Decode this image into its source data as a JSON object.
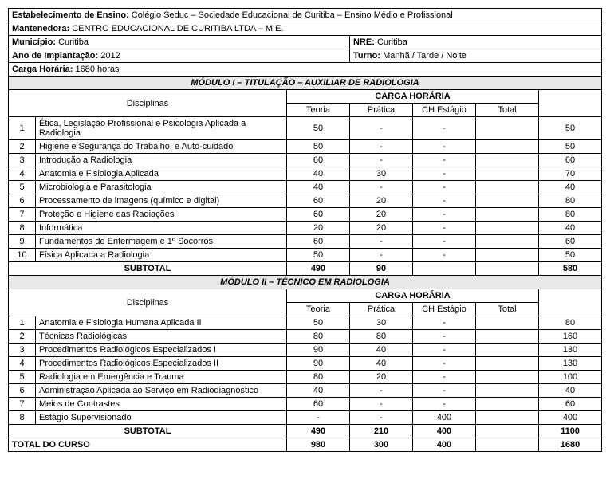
{
  "header": {
    "estabelecimento_label": "Estabelecimento de Ensino:",
    "estabelecimento_value": "Colégio Seduc – Sociedade Educacional de Curitiba – Ensino Médio e Profissional",
    "mantenedora_label": "Mantenedora:",
    "mantenedora_value": "CENTRO EDUCACIONAL DE CURITIBA LTDA – M.E.",
    "municipio_label": "Município:",
    "municipio_value": "Curitiba",
    "nre_label": "NRE:",
    "nre_value": "Curitiba",
    "ano_label": "Ano de Implantação:",
    "ano_value": "2012",
    "turno_label": "Turno:",
    "turno_value": "Manhã / Tarde / Noite",
    "carga_label": "Carga Horária:",
    "carga_value": "1680 horas"
  },
  "module1": {
    "title": "MÓDULO I – TITULAÇÃO – AUXILIAR DE RADIOLOGIA",
    "disciplinas_label": "Disciplinas",
    "carga_label": "CARGA HORÁRIA",
    "teoria_label": "Teoria",
    "pratica_label": "Prática",
    "estagio_label": "CH Estágio",
    "total_label": "Total",
    "rows": [
      {
        "n": "1",
        "d": "Ética, Legislação Profissional e Psicologia Aplicada a Radiologia",
        "t": "50",
        "p": "-",
        "e": "-",
        "tot": "50"
      },
      {
        "n": "2",
        "d": "Higiene e Segurança do Trabalho, e Auto-cuidado",
        "t": "50",
        "p": "-",
        "e": "-",
        "tot": "50"
      },
      {
        "n": "3",
        "d": "Introdução a Radiologia",
        "t": "60",
        "p": "-",
        "e": "-",
        "tot": "60"
      },
      {
        "n": "4",
        "d": "Anatomia e Fisiologia Aplicada",
        "t": "40",
        "p": "30",
        "e": "-",
        "tot": "70"
      },
      {
        "n": "5",
        "d": "Microbiologia e Parasitologia",
        "t": "40",
        "p": "-",
        "e": "-",
        "tot": "40"
      },
      {
        "n": "6",
        "d": "Processamento de imagens (químico e digital)",
        "t": "60",
        "p": "20",
        "e": "-",
        "tot": "80"
      },
      {
        "n": "7",
        "d": "Proteção e Higiene das Radiações",
        "t": "60",
        "p": "20",
        "e": "-",
        "tot": "80"
      },
      {
        "n": "8",
        "d": "Informática",
        "t": "20",
        "p": "20",
        "e": "-",
        "tot": "40"
      },
      {
        "n": "9",
        "d": "Fundamentos de Enfermagem e 1º Socorros",
        "t": "60",
        "p": "-",
        "e": "-",
        "tot": "60"
      },
      {
        "n": "10",
        "d": "Física Aplicada a Radiologia",
        "t": "50",
        "p": "-",
        "e": "-",
        "tot": "50"
      }
    ],
    "subtotal_label": "SUBTOTAL",
    "sub_t": "490",
    "sub_p": "90",
    "sub_e": "",
    "sub_tot": "580"
  },
  "module2": {
    "title": "MÓDULO II – TÉCNICO EM RADIOLOGIA",
    "disciplinas_label": "Disciplinas",
    "carga_label": "CARGA HORÁRIA",
    "teoria_label": "Teoria",
    "pratica_label": "Prática",
    "estagio_label": "CH Estágio",
    "total_label": "Total",
    "rows": [
      {
        "n": "1",
        "d": "Anatomia e Fisiologia Humana Aplicada II",
        "t": "50",
        "p": "30",
        "e": "-",
        "tot": "80"
      },
      {
        "n": "2",
        "d": "Técnicas Radiológicas",
        "t": "80",
        "p": "80",
        "e": "-",
        "tot": "160"
      },
      {
        "n": "3",
        "d": "Procedimentos Radiológicos Especializados I",
        "t": "90",
        "p": "40",
        "e": "-",
        "tot": "130"
      },
      {
        "n": "4",
        "d": "Procedimentos Radiológicos Especializados II",
        "t": "90",
        "p": "40",
        "e": "-",
        "tot": "130"
      },
      {
        "n": "5",
        "d": "Radiologia em Emergência e Trauma",
        "t": "80",
        "p": "20",
        "e": "-",
        "tot": "100"
      },
      {
        "n": "6",
        "d": "Administração Aplicada ao Serviço em Radiodiagnóstico",
        "t": "40",
        "p": "-",
        "e": "-",
        "tot": "40"
      },
      {
        "n": "7",
        "d": "Meios de Contrastes",
        "t": "60",
        "p": "-",
        "e": "-",
        "tot": "60"
      },
      {
        "n": "8",
        "d": "Estágio Supervisionado",
        "t": "-",
        "p": "-",
        "e": "400",
        "tot": "400"
      }
    ],
    "subtotal_label": "SUBTOTAL",
    "sub_t": "490",
    "sub_p": "210",
    "sub_e": "400",
    "sub_tot": "1100"
  },
  "total": {
    "label": "TOTAL DO CURSO",
    "t": "980",
    "p": "300",
    "e": "400",
    "tot": "1680"
  }
}
